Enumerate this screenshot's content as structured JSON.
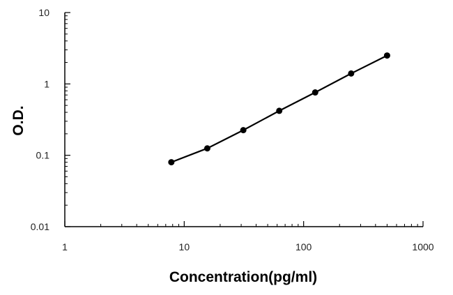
{
  "chart_data": {
    "type": "line",
    "title": "",
    "xlabel": "Concentration(pg/ml)",
    "ylabel": "O.D.",
    "x_scale": "log",
    "y_scale": "log",
    "xlim": [
      1,
      1000
    ],
    "ylim": [
      0.01,
      10
    ],
    "x_ticks": [
      {
        "value": 1,
        "label": "1"
      },
      {
        "value": 10,
        "label": "10"
      },
      {
        "value": 100,
        "label": "100"
      },
      {
        "value": 1000,
        "label": "1000"
      }
    ],
    "y_ticks": [
      {
        "value": 0.01,
        "label": "0.01"
      },
      {
        "value": 0.1,
        "label": "0.1"
      },
      {
        "value": 1,
        "label": "1"
      },
      {
        "value": 10,
        "label": "10"
      }
    ],
    "grid": false,
    "legend": "none",
    "series": [
      {
        "color": "#000000",
        "x": [
          7.8,
          15.6,
          31.25,
          62.5,
          125,
          250,
          500
        ],
        "y": [
          0.08,
          0.125,
          0.225,
          0.42,
          0.76,
          1.4,
          2.5
        ]
      }
    ]
  }
}
